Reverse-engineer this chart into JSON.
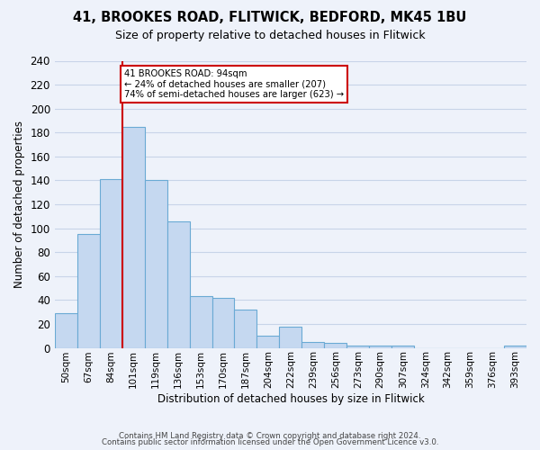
{
  "title": "41, BROOKES ROAD, FLITWICK, BEDFORD, MK45 1BU",
  "subtitle": "Size of property relative to detached houses in Flitwick",
  "xlabel": "Distribution of detached houses by size in Flitwick",
  "ylabel": "Number of detached properties",
  "bin_labels": [
    "50sqm",
    "67sqm",
    "84sqm",
    "101sqm",
    "119sqm",
    "136sqm",
    "153sqm",
    "170sqm",
    "187sqm",
    "204sqm",
    "222sqm",
    "239sqm",
    "256sqm",
    "273sqm",
    "290sqm",
    "307sqm",
    "324sqm",
    "342sqm",
    "359sqm",
    "376sqm",
    "393sqm"
  ],
  "bar_heights": [
    29,
    95,
    141,
    185,
    140,
    106,
    43,
    42,
    32,
    10,
    18,
    5,
    4,
    2,
    2,
    2,
    0,
    0,
    0,
    0,
    2
  ],
  "bar_color": "#c5d8f0",
  "bar_edge_color": "#6aaad4",
  "vline_x": 2.5,
  "annotation_box_text": [
    "41 BROOKES ROAD: 94sqm",
    "← 24% of detached houses are smaller (207)",
    "74% of semi-detached houses are larger (623) →"
  ],
  "annotation_box_color": "white",
  "annotation_box_edge_color": "#cc0000",
  "vline_color": "#cc0000",
  "ylim": [
    0,
    240
  ],
  "yticks": [
    0,
    20,
    40,
    60,
    80,
    100,
    120,
    140,
    160,
    180,
    200,
    220,
    240
  ],
  "footer1": "Contains HM Land Registry data © Crown copyright and database right 2024.",
  "footer2": "Contains public sector information licensed under the Open Government Licence v3.0.",
  "background_color": "#eef2fa",
  "grid_color": "#c8d4e8"
}
